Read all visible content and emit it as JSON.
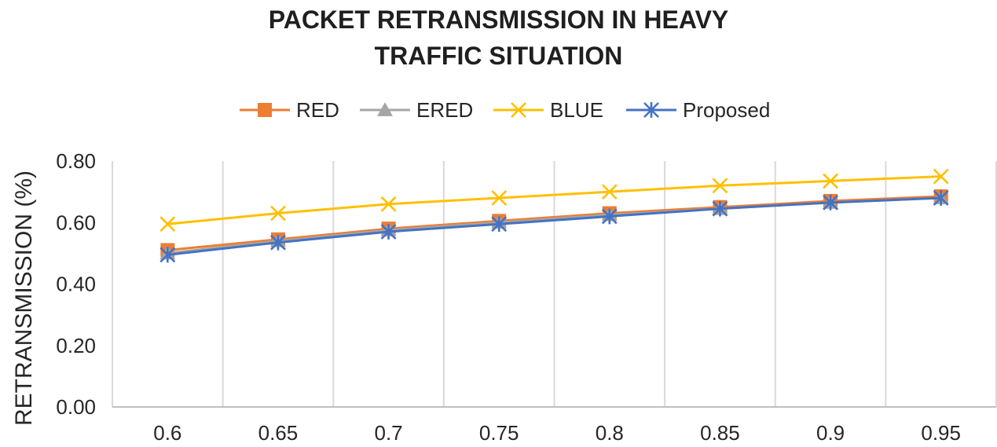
{
  "chart_data": {
    "type": "line",
    "title_lines": [
      "PACKET RETRANSMISSION IN HEAVY",
      "TRAFFIC SITUATION"
    ],
    "xlabel": "",
    "ylabel": "RETRANSMISSION (%)",
    "categories": [
      "0.6",
      "0.65",
      "0.7",
      "0.75",
      "0.8",
      "0.85",
      "0.9",
      "0.95"
    ],
    "y_ticks": [
      "0.00",
      "0.20",
      "0.40",
      "0.60",
      "0.80"
    ],
    "ylim": [
      0,
      0.8
    ],
    "grid": "vertical",
    "legend_position": "top",
    "series": [
      {
        "name": "RED",
        "color": "#ED7D31",
        "marker": "square",
        "values": [
          0.51,
          0.545,
          0.58,
          0.605,
          0.63,
          0.65,
          0.67,
          0.685
        ]
      },
      {
        "name": "ERED",
        "color": "#A5A5A5",
        "marker": "triangle",
        "values": [
          0.5,
          0.54,
          0.575,
          0.6,
          0.625,
          0.645,
          0.665,
          0.68
        ]
      },
      {
        "name": "BLUE",
        "color": "#FFC000",
        "marker": "x",
        "values": [
          0.595,
          0.63,
          0.66,
          0.68,
          0.7,
          0.72,
          0.735,
          0.75
        ]
      },
      {
        "name": "Proposed",
        "color": "#4472C4",
        "marker": "star",
        "values": [
          0.495,
          0.535,
          0.57,
          0.595,
          0.62,
          0.645,
          0.665,
          0.68
        ]
      }
    ]
  }
}
